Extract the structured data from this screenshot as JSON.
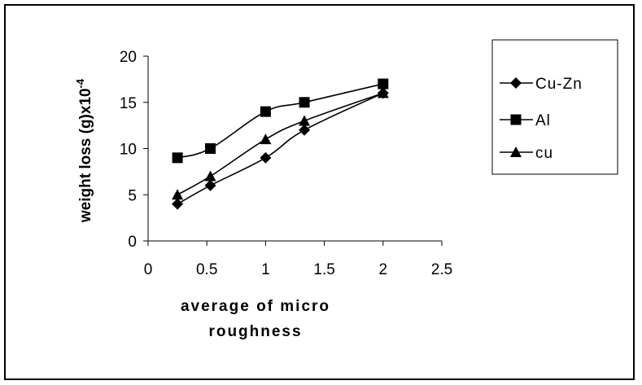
{
  "chart_data": {
    "type": "line",
    "title": "",
    "xlabel_lines": [
      "average of micro",
      "roughness"
    ],
    "ylabel": "weight loss (g)x10",
    "ylabel_superscript": "-4",
    "xlim": [
      0,
      2.5
    ],
    "ylim": [
      0,
      20
    ],
    "x_ticks": [
      0,
      0.5,
      1,
      1.5,
      2,
      2.5
    ],
    "y_ticks": [
      0,
      5,
      10,
      15,
      20
    ],
    "x_tick_labels": [
      "0",
      "0.5",
      "1",
      "1.5",
      "2",
      "2.5"
    ],
    "y_tick_labels": [
      "0",
      "5",
      "10",
      "15",
      "20"
    ],
    "grid": false,
    "legend_position": "right",
    "series": [
      {
        "name": "Cu-Zn",
        "marker": "diamond",
        "color": "#000000",
        "x": [
          0.25,
          0.53,
          1.0,
          1.33,
          2.0
        ],
        "y": [
          4,
          6,
          9,
          12,
          16
        ]
      },
      {
        "name": "Al",
        "marker": "square",
        "color": "#000000",
        "x": [
          0.25,
          0.53,
          1.0,
          1.33,
          2.0
        ],
        "y": [
          9,
          10,
          14,
          15,
          17
        ]
      },
      {
        "name": "cu",
        "marker": "triangle",
        "color": "#000000",
        "x": [
          0.25,
          0.53,
          1.0,
          1.33,
          2.0
        ],
        "y": [
          5,
          7,
          11,
          13,
          16
        ]
      }
    ]
  }
}
